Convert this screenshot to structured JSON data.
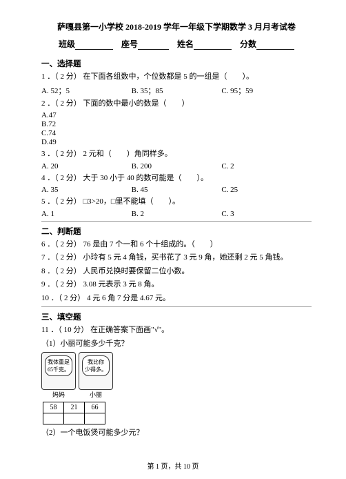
{
  "title": "萨嘎县第一小学校 2018-2019 学年一年级下学期数学 3 月月考试卷",
  "header": {
    "class": "班级",
    "seat": "座号",
    "name": "姓名",
    "score": "分数"
  },
  "section1": "一、选择题",
  "q1": {
    "text": "1 ．（ 2 分）  在下面各组数中，个位数都是 5 的一组是（　　）。",
    "a": "A. 52；5",
    "b": "B. 35；85",
    "c": "C. 95；59"
  },
  "q2": {
    "text": "2 ．（ 2 分）  下面的数中最小的数是（　　）",
    "a": "A.47",
    "b": "B.72",
    "c": "C.74",
    "d": "D.49"
  },
  "q3": {
    "text": "3 ．（ 2 分）  2 元和（　　）角同样多。",
    "a": "A. 20",
    "b": "B. 200",
    "c": "C. 2"
  },
  "q4": {
    "text": "4 ．（ 2 分）  大于 30 小于 40 的数可能是（　　）。",
    "a": "A. 35",
    "b": "B. 45",
    "c": "C. 25"
  },
  "q5": {
    "text": "5 ．（ 2 分）  □3>20，□里不能填（　　）。",
    "a": "A. 1",
    "b": "B. 2",
    "c": "C. 3"
  },
  "section2": "二、判断题",
  "q6": "6 ．（ 2 分）  76 是由 7 个一和 6 个十组成的。（　　）",
  "q7": "7 ．（ 2 分）  小玲有 5 元 4 角钱，买书花了 3 元 9 角，她还剩 2 元 5 角钱。",
  "q8": "8 ．（ 2 分）  人民币兑换时要保留二位小数。",
  "q9": "9 ．（ 2 分）  3.08 元表示 3 元 8 角。",
  "q10": "10 ．（ 2 分）  4 元 6 角 7 分是 4.67 元。",
  "section3": "三、填空题",
  "q11": "11 ．（ 10 分）  在正确答案下面画\"√\"。",
  "q11_1": "（1）小丽可能多少千克？",
  "bubble1": "我体重是\n65千克。",
  "bubble2": "我比你\n少得多。",
  "mom": "妈妈",
  "girl": "小丽",
  "cells": [
    "58",
    "21",
    "66"
  ],
  "q11_2": "（2）一个电饭煲可能多少元？",
  "footer": "第 1 页，共 10 页"
}
